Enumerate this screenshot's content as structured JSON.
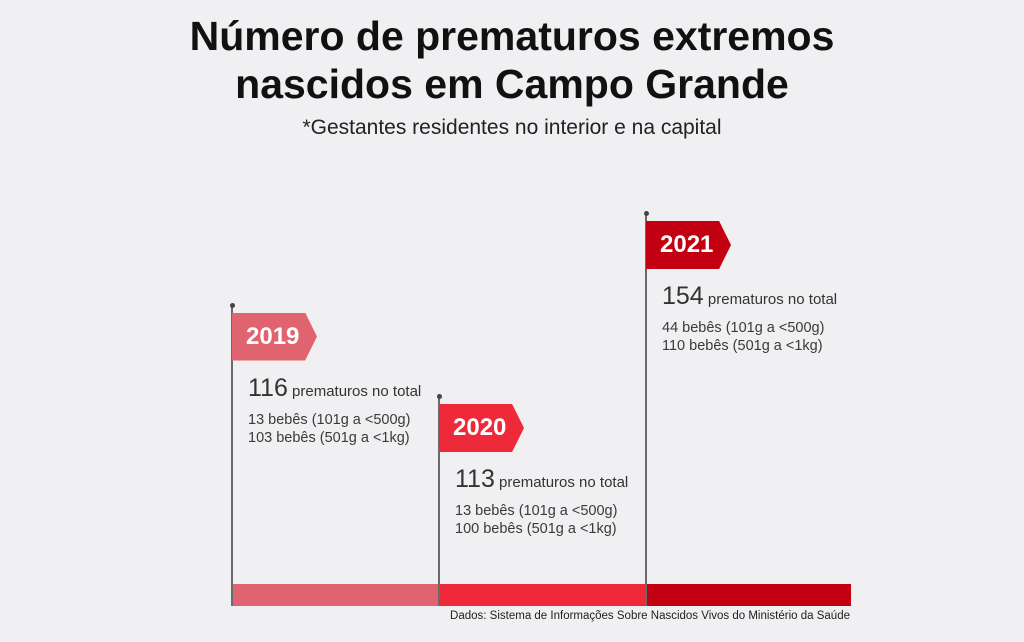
{
  "header": {
    "title_line1": "Número de prematuros extremos",
    "title_line2": "nascidos em Campo Grande",
    "subtitle": "*Gestantes residentes no interior e na capital"
  },
  "chart_data": {
    "type": "bar",
    "categories": [
      "2019",
      "2020",
      "2021"
    ],
    "series": [
      {
        "values": [
          116,
          113,
          154
        ]
      }
    ],
    "total_label": "prematuros no total",
    "details": [
      [
        "13 bebês (101g a <500g)",
        "103 bebês (501g a <1kg)"
      ],
      [
        "13 bebês (101g a <500g)",
        "100 bebês (501g a <1kg)"
      ],
      [
        "44 bebês (101g a <500g)",
        "110 bebês (501g a <1kg)"
      ]
    ],
    "colors": [
      "#e06470",
      "#ee2a3a",
      "#c20012"
    ],
    "source": "Dados: Sistema de Informações Sobre Nascidos Vivos do Ministério da Saúde"
  }
}
